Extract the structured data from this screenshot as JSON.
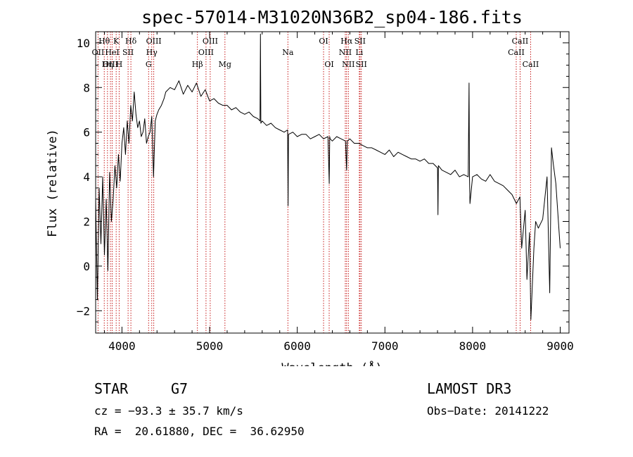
{
  "chart_data": {
    "type": "line",
    "title": "spec-57014-M31020N36B2_sp04-186.fits",
    "xlabel": "Wavelength (Å)",
    "ylabel": "Flux (relative)",
    "xlim": [
      3700,
      9100
    ],
    "ylim": [
      -3,
      10.5
    ],
    "x_ticks": [
      4000,
      5000,
      6000,
      7000,
      8000,
      9000
    ],
    "x_tick_labels": [
      "4000",
      "5000",
      "6000",
      "7000",
      "8000",
      "9000"
    ],
    "y_ticks": [
      -2,
      0,
      2,
      4,
      6,
      8,
      10
    ],
    "y_tick_labels": [
      "−2",
      "0",
      "2",
      "4",
      "6",
      "8",
      "10"
    ],
    "grid": false,
    "series": [
      {
        "name": "spectrum",
        "x": [
          3700,
          3720,
          3740,
          3760,
          3780,
          3800,
          3820,
          3840,
          3860,
          3880,
          3900,
          3920,
          3940,
          3960,
          3980,
          4000,
          4020,
          4040,
          4060,
          4080,
          4100,
          4120,
          4140,
          4160,
          4180,
          4200,
          4220,
          4240,
          4260,
          4280,
          4300,
          4320,
          4340,
          4360,
          4380,
          4400,
          4420,
          4450,
          4480,
          4500,
          4550,
          4600,
          4650,
          4700,
          4750,
          4800,
          4850,
          4900,
          4950,
          5000,
          5050,
          5100,
          5150,
          5200,
          5250,
          5300,
          5350,
          5400,
          5450,
          5500,
          5550,
          5575,
          5580,
          5585,
          5600,
          5650,
          5700,
          5750,
          5800,
          5850,
          5890,
          5895,
          5900,
          5950,
          6000,
          6050,
          6100,
          6150,
          6200,
          6250,
          6300,
          6350,
          6365,
          6370,
          6375,
          6400,
          6450,
          6500,
          6550,
          6563,
          6570,
          6600,
          6650,
          6700,
          6750,
          6800,
          6850,
          6900,
          6950,
          7000,
          7050,
          7100,
          7150,
          7200,
          7250,
          7300,
          7350,
          7400,
          7450,
          7500,
          7550,
          7600,
          7605,
          7610,
          7650,
          7700,
          7750,
          7800,
          7850,
          7900,
          7950,
          7960,
          7965,
          7970,
          8000,
          8050,
          8100,
          8150,
          8200,
          8250,
          8300,
          8350,
          8400,
          8450,
          8500,
          8540,
          8560,
          8600,
          8620,
          8650,
          8665,
          8700,
          8720,
          8750,
          8800,
          8850,
          8880,
          8900,
          8920,
          8950,
          9000
        ],
        "y": [
          3.0,
          -1.5,
          3.5,
          1.0,
          4.0,
          0.5,
          3.0,
          -0.2,
          4.2,
          2.0,
          3.0,
          4.5,
          3.5,
          5.0,
          3.8,
          5.5,
          6.2,
          5.0,
          6.5,
          5.5,
          7.2,
          6.5,
          7.8,
          6.8,
          6.2,
          6.5,
          5.8,
          6.0,
          6.6,
          5.5,
          5.8,
          6.0,
          6.7,
          4.0,
          6.5,
          6.8,
          7.0,
          7.2,
          7.5,
          7.8,
          8.0,
          7.9,
          8.3,
          7.7,
          8.1,
          7.8,
          8.2,
          7.6,
          7.9,
          7.4,
          7.5,
          7.3,
          7.2,
          7.2,
          7.0,
          7.1,
          6.9,
          6.8,
          6.9,
          6.7,
          6.6,
          6.5,
          10.4,
          6.4,
          6.5,
          6.3,
          6.4,
          6.2,
          6.1,
          6.0,
          6.1,
          2.7,
          5.9,
          6.0,
          5.8,
          5.9,
          5.9,
          5.7,
          5.8,
          5.9,
          5.7,
          5.8,
          3.7,
          5.8,
          5.7,
          5.6,
          5.8,
          5.7,
          5.6,
          4.3,
          5.6,
          5.7,
          5.5,
          5.5,
          5.4,
          5.3,
          5.3,
          5.2,
          5.1,
          5.0,
          5.2,
          4.9,
          5.1,
          5.0,
          4.9,
          4.8,
          4.8,
          4.7,
          4.8,
          4.6,
          4.6,
          4.4,
          2.3,
          4.5,
          4.3,
          4.2,
          4.1,
          4.3,
          4.0,
          4.1,
          4.0,
          8.2,
          4.0,
          2.8,
          4.0,
          4.1,
          3.9,
          3.8,
          4.1,
          3.8,
          3.7,
          3.6,
          3.4,
          3.2,
          2.8,
          3.1,
          0.8,
          2.5,
          -0.6,
          1.5,
          -2.4,
          0.8,
          2.0,
          1.7,
          2.1,
          4.0,
          -1.2,
          5.3,
          4.6,
          3.7,
          0.8
        ]
      }
    ],
    "line_labels": [
      {
        "label": "Hθ",
        "wave": 3798,
        "row": 1
      },
      {
        "label": "OII",
        "wave": 3727,
        "row": 2
      },
      {
        "label": "OIII",
        "wave": 3869,
        "row": 3
      },
      {
        "label": "K",
        "wave": 3934,
        "row": 1
      },
      {
        "label": "HeI",
        "wave": 3889,
        "row": 2
      },
      {
        "label": "Hη",
        "wave": 3835,
        "row": 3
      },
      {
        "label": "SII",
        "wave": 4070,
        "row": 2
      },
      {
        "label": "H",
        "wave": 3968,
        "row": 3
      },
      {
        "label": "Hδ",
        "wave": 4102,
        "row": 1
      },
      {
        "label": "OIII",
        "wave": 4363,
        "row": 1
      },
      {
        "label": "Hγ",
        "wave": 4340,
        "row": 2
      },
      {
        "label": "G",
        "wave": 4304,
        "row": 3
      },
      {
        "label": "Hβ",
        "wave": 4861,
        "row": 3
      },
      {
        "label": "OIII",
        "wave": 5007,
        "row": 1
      },
      {
        "label": "OIII",
        "wave": 4959,
        "row": 2
      },
      {
        "label": "Mg",
        "wave": 5175,
        "row": 3
      },
      {
        "label": "Na",
        "wave": 5893,
        "row": 2
      },
      {
        "label": "OI",
        "wave": 6300,
        "row": 1
      },
      {
        "label": "OI",
        "wave": 6364,
        "row": 3
      },
      {
        "label": "Hα",
        "wave": 6563,
        "row": 1
      },
      {
        "label": "SII",
        "wave": 6716,
        "row": 1
      },
      {
        "label": "NII",
        "wave": 6548,
        "row": 2
      },
      {
        "label": "Li",
        "wave": 6708,
        "row": 2
      },
      {
        "label": "NII",
        "wave": 6583,
        "row": 3
      },
      {
        "label": "SII",
        "wave": 6731,
        "row": 3
      },
      {
        "label": "CaII",
        "wave": 8542,
        "row": 1
      },
      {
        "label": "CaII",
        "wave": 8498,
        "row": 2
      },
      {
        "label": "CaII",
        "wave": 8662,
        "row": 3
      }
    ],
    "marker_lines": [
      3727,
      3798,
      3835,
      3869,
      3889,
      3934,
      3968,
      4070,
      4102,
      4304,
      4340,
      4363,
      4861,
      4959,
      5007,
      5175,
      5893,
      6300,
      6364,
      6548,
      6563,
      6583,
      6708,
      6716,
      6731,
      8498,
      8542,
      8662
    ]
  },
  "info": {
    "object_class": "STAR",
    "subclass": "G7",
    "survey": "LAMOST DR3",
    "cz": "cz = −93.3 ± 35.7 km/s",
    "obs_date": "Obs−Date: 20141222",
    "coords": "RA =  20.61880, DEC =  36.62950"
  }
}
